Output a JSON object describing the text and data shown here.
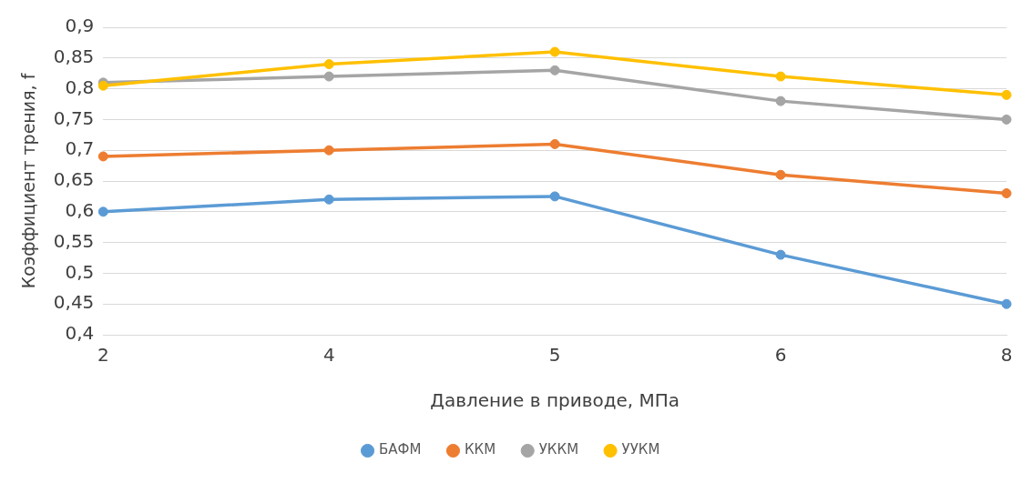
{
  "chart_data": {
    "type": "line",
    "xlabel": "Давление в приводе, МПа",
    "ylabel": "Коэффициент трения, f",
    "categories": [
      "2",
      "4",
      "5",
      "6",
      "8"
    ],
    "series": [
      {
        "name": "БАФМ",
        "color": "#5b9bd5",
        "values": [
          0.6,
          0.62,
          0.625,
          0.53,
          0.45
        ]
      },
      {
        "name": "ККМ",
        "color": "#ed7d31",
        "values": [
          0.69,
          0.7,
          0.71,
          0.66,
          0.63
        ]
      },
      {
        "name": "УККМ",
        "color": "#a5a5a5",
        "values": [
          0.81,
          0.82,
          0.83,
          0.78,
          0.75
        ]
      },
      {
        "name": "УУКМ",
        "color": "#ffc000",
        "values": [
          0.805,
          0.84,
          0.86,
          0.82,
          0.79
        ]
      }
    ],
    "ylim": [
      0.4,
      0.9
    ],
    "yticks": [
      {
        "value": 0.4,
        "label": "0,4"
      },
      {
        "value": 0.45,
        "label": "0,45"
      },
      {
        "value": 0.5,
        "label": "0,5"
      },
      {
        "value": 0.55,
        "label": "0,55"
      },
      {
        "value": 0.6,
        "label": "0,6"
      },
      {
        "value": 0.65,
        "label": "0,65"
      },
      {
        "value": 0.7,
        "label": "0,7"
      },
      {
        "value": 0.75,
        "label": "0,75"
      },
      {
        "value": 0.8,
        "label": "0,8"
      },
      {
        "value": 0.85,
        "label": "0,85"
      },
      {
        "value": 0.9,
        "label": "0,9"
      }
    ],
    "grid": "y",
    "legend": "bottom",
    "marker": "circle",
    "line_style": "solid"
  }
}
